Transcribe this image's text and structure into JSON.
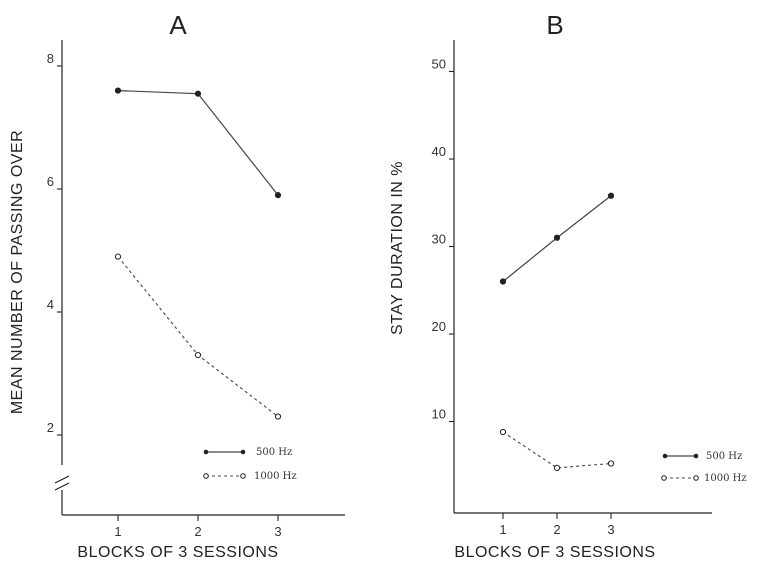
{
  "chart_data": [
    {
      "type": "line",
      "panel": "A",
      "xlabel": "BLOCKS OF 3 SESSIONS",
      "ylabel": "MEAN NUMBER OF PASSING OVER",
      "x": [
        1,
        2,
        3
      ],
      "xticks": [
        "1",
        "2",
        "3"
      ],
      "yticks": [
        "2",
        "4",
        "6",
        "8"
      ],
      "ylim": [
        1,
        8.5
      ],
      "axis_break": true,
      "legend_position": "bottom-right",
      "series": [
        {
          "name": "500 Hz",
          "values": [
            7.6,
            7.55,
            5.9
          ],
          "style": "solid",
          "marker": "filled-circle"
        },
        {
          "name": "1000 Hz",
          "values": [
            4.9,
            3.3,
            2.3
          ],
          "style": "dashed",
          "marker": "open-circle"
        }
      ]
    },
    {
      "type": "line",
      "panel": "B",
      "xlabel": "BLOCKS OF 3 SESSIONS",
      "ylabel": "STAY DURATION IN %",
      "x": [
        1,
        2,
        3
      ],
      "xticks": [
        "1",
        "2",
        "3"
      ],
      "yticks": [
        "10",
        "20",
        "30",
        "40",
        "50"
      ],
      "ylim": [
        0,
        55
      ],
      "legend_position": "bottom-right",
      "series": [
        {
          "name": "500 Hz",
          "values": [
            26,
            31,
            35.8
          ],
          "style": "solid",
          "marker": "filled-circle"
        },
        {
          "name": "1000 Hz",
          "values": [
            8.8,
            4.7,
            5.2
          ],
          "style": "dashed",
          "marker": "open-circle"
        }
      ]
    }
  ]
}
